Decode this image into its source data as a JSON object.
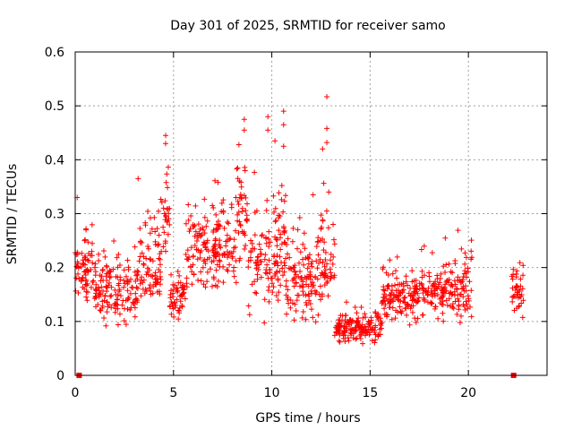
{
  "chart_data": {
    "type": "scatter",
    "title": "Day 301 of 2025, SRMTID for receiver samo",
    "xlabel": "GPS time / hours",
    "ylabel": "SRMTID / TECUs",
    "xlim": [
      0,
      24
    ],
    "ylim": [
      0,
      0.6
    ],
    "xticks": [
      "0",
      "5",
      "10",
      "15",
      "20"
    ],
    "xtick_values": [
      0,
      5,
      10,
      15,
      20
    ],
    "yticks": [
      "0",
      "0.1",
      "0.2",
      "0.3",
      "0.4",
      "0.5",
      "0.6"
    ],
    "ytick_values": [
      0,
      0.1,
      0.2,
      0.3,
      0.4,
      0.5,
      0.6
    ],
    "grid": true,
    "marker": "plus",
    "series_color": "#ff0000",
    "zero_marker_color": "#ff0000",
    "zero_markers": [
      {
        "x": 0.2,
        "y": 0
      },
      {
        "x": 22.3,
        "y": 0
      }
    ],
    "segments": [
      {
        "x0": 0.0,
        "x1": 1.0,
        "ymin": 0.12,
        "ymax": 0.33,
        "center": 0.2
      },
      {
        "x0": 1.0,
        "x1": 3.2,
        "ymin": 0.06,
        "ymax": 0.27,
        "center": 0.16
      },
      {
        "x0": 3.2,
        "x1": 4.4,
        "ymin": 0.11,
        "ymax": 0.37,
        "center": 0.2
      },
      {
        "x0": 4.4,
        "x1": 4.8,
        "ymin": 0.17,
        "ymax": 0.45,
        "center": 0.3
      },
      {
        "x0": 4.8,
        "x1": 5.6,
        "ymin": 0.09,
        "ymax": 0.24,
        "center": 0.15
      },
      {
        "x0": 5.6,
        "x1": 8.2,
        "ymin": 0.14,
        "ymax": 0.39,
        "center": 0.24
      },
      {
        "x0": 8.2,
        "x1": 8.8,
        "ymin": 0.16,
        "ymax": 0.48,
        "center": 0.32
      },
      {
        "x0": 8.8,
        "x1": 10.8,
        "ymin": 0.08,
        "ymax": 0.49,
        "center": 0.22
      },
      {
        "x0": 10.8,
        "x1": 12.5,
        "ymin": 0.07,
        "ymax": 0.34,
        "center": 0.18
      },
      {
        "x0": 12.5,
        "x1": 13.2,
        "ymin": 0.09,
        "ymax": 0.52,
        "center": 0.21
      },
      {
        "x0": 13.2,
        "x1": 15.6,
        "ymin": 0.05,
        "ymax": 0.15,
        "center": 0.09
      },
      {
        "x0": 15.6,
        "x1": 17.2,
        "ymin": 0.08,
        "ymax": 0.24,
        "center": 0.15
      },
      {
        "x0": 17.2,
        "x1": 20.2,
        "ymin": 0.08,
        "ymax": 0.29,
        "center": 0.16
      },
      {
        "x0": 22.2,
        "x1": 22.8,
        "ymin": 0.1,
        "ymax": 0.24,
        "center": 0.16
      }
    ],
    "highlights": [
      {
        "x": 12.8,
        "y": 0.517
      },
      {
        "x": 12.8,
        "y": 0.458
      },
      {
        "x": 12.8,
        "y": 0.432
      },
      {
        "x": 12.9,
        "y": 0.34
      },
      {
        "x": 10.6,
        "y": 0.49
      },
      {
        "x": 10.6,
        "y": 0.465
      },
      {
        "x": 10.6,
        "y": 0.425
      },
      {
        "x": 9.8,
        "y": 0.48
      },
      {
        "x": 9.8,
        "y": 0.455
      },
      {
        "x": 8.6,
        "y": 0.475
      },
      {
        "x": 8.6,
        "y": 0.455
      },
      {
        "x": 4.6,
        "y": 0.445
      },
      {
        "x": 4.6,
        "y": 0.43
      },
      {
        "x": 3.2,
        "y": 0.365
      },
      {
        "x": 12.1,
        "y": 0.335
      },
      {
        "x": 0.1,
        "y": 0.33
      }
    ],
    "point_count": 1400
  }
}
